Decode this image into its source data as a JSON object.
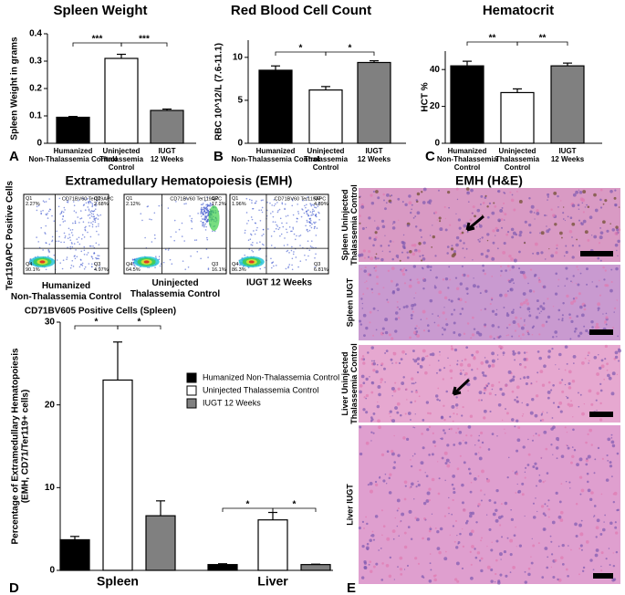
{
  "chart_data": [
    {
      "type": "bar",
      "label": "A",
      "title": "Spleen Weight",
      "y_label": "Spleen Weight in grams",
      "categories": [
        "Humanized\nNon-Thalassemia Control",
        "Uninjected\nThalassemia\nControl",
        "IUGT\n12 Weeks"
      ],
      "values": [
        0.095,
        0.31,
        0.12
      ],
      "errors": [
        0.003,
        0.015,
        0.005
      ],
      "colors": [
        "#000000",
        "#ffffff",
        "#808080"
      ],
      "ylim": [
        0,
        0.4
      ],
      "yticks": [
        0,
        0.1,
        0.2,
        0.3,
        0.4
      ],
      "annotations": [
        "***",
        "***"
      ]
    },
    {
      "type": "bar",
      "label": "B",
      "title": "Red Blood Cell Count",
      "y_label": "RBC 10^12/L (7.6-11.1)",
      "categories": [
        "Humanized\nNon-Thalassemia Control",
        "Uninjected\nThalassemia\nControl",
        "IUGT\n12 Weeks"
      ],
      "values": [
        8.5,
        6.2,
        9.4
      ],
      "errors": [
        0.5,
        0.4,
        0.2
      ],
      "colors": [
        "#000000",
        "#ffffff",
        "#808080"
      ],
      "ylim": [
        0,
        12
      ],
      "yticks": [
        0,
        5,
        10
      ],
      "annotations": [
        "*",
        "*"
      ]
    },
    {
      "type": "bar",
      "label": "C",
      "title": "Hematocrit",
      "y_label": "HCT %",
      "categories": [
        "Humanized\nNon-Thalassemia\nControl",
        "Uninjected\nThalassemia\nControl",
        "IUGT\n12 Weeks"
      ],
      "values": [
        42,
        27.5,
        42
      ],
      "errors": [
        2.5,
        2,
        1.5
      ],
      "colors": [
        "#000000",
        "#ffffff",
        "#808080"
      ],
      "ylim": [
        0,
        50
      ],
      "yticks": [
        0,
        20,
        40
      ],
      "annotations": [
        "**",
        "**"
      ]
    },
    {
      "type": "grouped_bar",
      "label": "D",
      "y_label": "Percentage of Extramedullary Hematopoiesis\n(EMH, CD71/Ter119+ cells)",
      "categories": [
        "Spleen",
        "Liver"
      ],
      "series": [
        {
          "name": "Humanized Non-Thalassemia Control",
          "color": "#000000",
          "values": [
            3.7,
            0.7
          ],
          "errors": [
            0.4,
            0.1
          ]
        },
        {
          "name": "Uninjected Thalassemia Control",
          "color": "#ffffff",
          "values": [
            23,
            6.1
          ],
          "errors": [
            4.6,
            0.9
          ]
        },
        {
          "name": "IUGT 12 Weeks",
          "color": "#808080",
          "values": [
            6.6,
            0.7
          ],
          "errors": [
            1.8,
            0.05
          ]
        }
      ],
      "ylim": [
        0,
        30
      ],
      "yticks": [
        0,
        10,
        20,
        30
      ],
      "annotations": [
        "*",
        "*",
        "*",
        "*"
      ]
    }
  ],
  "flow": {
    "title": "Extramedullary Hematopoiesis (EMH)",
    "y_label": "Ter119APC Positive Cells",
    "x_label": "CD71BV605 Positive Cells (Spleen)",
    "plots": [
      {
        "header": "CD71BV60 Ter119APC",
        "caption": "Humanized\nNon-Thalassemia Control",
        "q1": "Q1\n2.27%",
        "q2": "Q2\n2.68%",
        "q3": "Q3\n4.97%",
        "q4": "Q4\n90.1%"
      },
      {
        "header": "CD71BV60 Ter119APC",
        "caption": "Uninjected\nThalassemia Control",
        "q1": "Q1\n2.12%",
        "q2": "Q2\n17.2%",
        "q3": "Q3\n16.1%",
        "q4": "Q4\n64.5%"
      },
      {
        "header": "CD71BV60 Ter119APC",
        "caption": "IUGT 12 Weeks",
        "q1": "Q1\n1.96%",
        "q2": "Q2\n4.89%",
        "q3": "Q3\n6.81%",
        "q4": "Q4\n86.3%"
      }
    ]
  },
  "histology": {
    "title": "EMH (H&E)",
    "label": "E",
    "panels": [
      "Spleen Uninjected\nThalassemia Control",
      "Spleen IUGT",
      "Liver Uninjected\nThalassemia Control",
      "Liver IUGT"
    ]
  }
}
